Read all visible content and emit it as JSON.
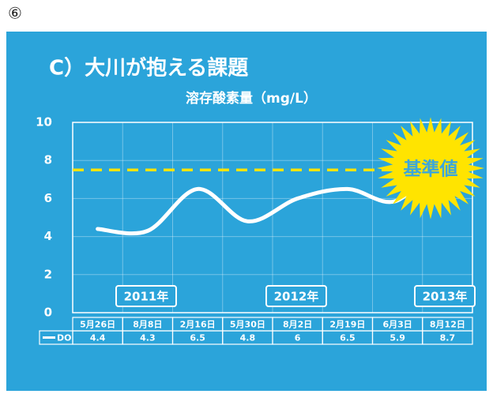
{
  "page_marker": "⑥",
  "chart_data": {
    "type": "line",
    "title": "C）大川が抱える課題",
    "subtitle": "溶存酸素量（mg/L）",
    "categories": [
      "5月26日",
      "8月8日",
      "2月16日",
      "5月30日",
      "8月2日",
      "2月19日",
      "6月3日",
      "8月12日"
    ],
    "series": [
      {
        "name": "DO",
        "color": "#ffffff",
        "values": [
          4.4,
          4.3,
          6.5,
          4.8,
          6.0,
          6.5,
          5.9,
          8.7
        ]
      }
    ],
    "ylim": [
      0,
      10
    ],
    "yticks": [
      0,
      2,
      4,
      6,
      8,
      10
    ],
    "grid": true,
    "reference_line": {
      "value": 7.5,
      "label": "基準値",
      "color": "#ffe400"
    },
    "year_labels": [
      "2011年",
      "2012年",
      "2013年"
    ]
  }
}
